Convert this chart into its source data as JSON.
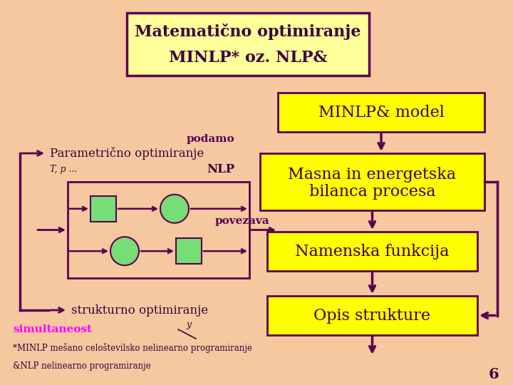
{
  "bg_color": "#f5c8a0",
  "title_text_line1": "Matematično optimiranje",
  "title_text_line2": "MINLP* oz. NLP&",
  "title_box_facecolor": "#ffff99",
  "title_box_edge": "#5a0050",
  "title_text_color": "#3d003d",
  "box_yellow": "#ffff00",
  "box_edge": "#5a0050",
  "box_text_color": "#3d003d",
  "arrow_color": "#5a0050",
  "green_shape": "#77dd77",
  "magenta_text": "#ff00ff",
  "slide_number": "6"
}
